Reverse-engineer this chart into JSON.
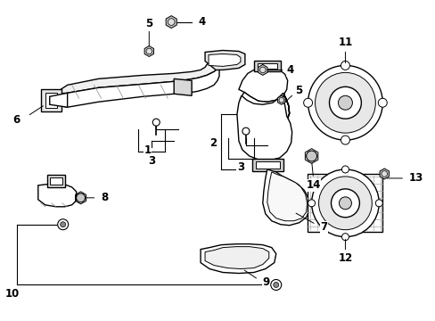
{
  "background_color": "#ffffff",
  "line_color": "#000000",
  "fig_width": 4.89,
  "fig_height": 3.6,
  "dpi": 100,
  "font_size": 8.5,
  "label_color": "#000000"
}
